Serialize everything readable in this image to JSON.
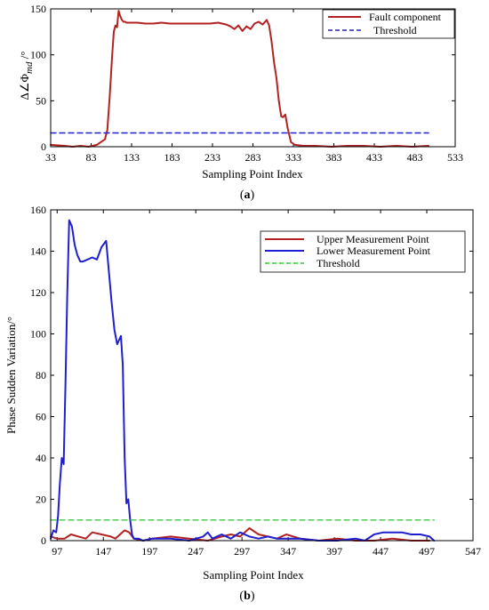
{
  "chart_data": [
    {
      "type": "line",
      "caption_open": "(",
      "caption_letter": "a",
      "caption_close": ")",
      "xlabel": "Sampling Point Index",
      "ylabel_main": "Δ∠Φ",
      "ylabel_sub": "md",
      "ylabel_unit": " /°",
      "xticks": [
        33,
        83,
        133,
        183,
        233,
        283,
        333,
        383,
        433,
        483,
        533
      ],
      "yticks": [
        0,
        50,
        100,
        150
      ],
      "xlim": [
        33,
        533
      ],
      "ylim": [
        0,
        150
      ],
      "legend_position": "top-right",
      "colors": {
        "fault": "#b22222",
        "threshold": "#1f1fd0"
      },
      "series": [
        {
          "name": "Fault component",
          "style": "solid",
          "x": [
            33,
            50,
            60,
            70,
            80,
            90,
            100,
            103,
            106,
            109,
            111,
            113,
            115,
            117,
            119,
            121,
            123,
            125,
            127,
            130,
            140,
            150,
            160,
            170,
            180,
            190,
            200,
            210,
            220,
            230,
            240,
            250,
            255,
            260,
            265,
            270,
            275,
            280,
            285,
            290,
            295,
            300,
            303,
            306,
            309,
            312,
            315,
            318,
            320,
            323,
            326,
            330,
            335,
            345,
            360,
            380,
            400,
            420,
            440,
            460,
            480,
            500
          ],
          "y": [
            2,
            1,
            0,
            1,
            0,
            2,
            8,
            18,
            55,
            100,
            125,
            132,
            130,
            148,
            142,
            138,
            136,
            136,
            135,
            135,
            135,
            134,
            134,
            135,
            134,
            134,
            134,
            134,
            134,
            134,
            135,
            133,
            131,
            128,
            132,
            126,
            131,
            128,
            134,
            136,
            133,
            138,
            132,
            115,
            92,
            75,
            50,
            33,
            32,
            35,
            20,
            5,
            2,
            1,
            1,
            0,
            1,
            1,
            0,
            1,
            0,
            1
          ]
        },
        {
          "name": "Threshold",
          "style": "dashed",
          "x": [
            33,
            500
          ],
          "y": [
            15,
            15
          ]
        }
      ]
    },
    {
      "type": "line",
      "caption_open": "(",
      "caption_letter": "b",
      "caption_close": ")",
      "xlabel": "Sampling Point Index",
      "ylabel": "Phase Sudden Variation/°",
      "xticks": [
        97,
        147,
        197,
        247,
        297,
        347,
        397,
        447,
        497,
        547
      ],
      "yticks": [
        0,
        20,
        40,
        60,
        80,
        100,
        120,
        140,
        160
      ],
      "xlim": [
        90,
        547
      ],
      "ylim": [
        0,
        160
      ],
      "legend_position": "top-right",
      "colors": {
        "upper": "#b22222",
        "lower": "#1f1fd0",
        "threshold": "#3cc83c"
      },
      "series": [
        {
          "name": "Upper Measurement Point",
          "style": "solid",
          "x": [
            90,
            97,
            105,
            112,
            120,
            128,
            135,
            145,
            155,
            160,
            165,
            170,
            175,
            180,
            190,
            200,
            220,
            240,
            260,
            275,
            285,
            295,
            305,
            315,
            325,
            335,
            345,
            360,
            380,
            400,
            420,
            440,
            460,
            480,
            500
          ],
          "y": [
            2,
            1,
            1,
            3,
            2,
            1,
            4,
            3,
            2,
            1,
            3,
            5,
            4,
            1,
            0,
            1,
            2,
            1,
            0,
            2,
            3,
            2,
            6,
            3,
            2,
            1,
            3,
            1,
            0,
            1,
            0,
            0,
            1,
            0,
            0
          ]
        },
        {
          "name": "Lower Measurement Point",
          "style": "solid",
          "x": [
            90,
            93,
            96,
            98,
            100,
            102,
            104,
            106,
            108,
            110,
            113,
            116,
            119,
            122,
            125,
            130,
            135,
            140,
            145,
            150,
            153,
            156,
            159,
            162,
            164,
            166,
            168,
            170,
            172,
            174,
            176,
            178,
            180,
            185,
            190,
            200,
            220,
            240,
            255,
            260,
            265,
            275,
            285,
            295,
            305,
            315,
            325,
            335,
            345,
            360,
            380,
            400,
            420,
            430,
            440,
            450,
            460,
            470,
            480,
            490,
            500,
            505
          ],
          "y": [
            1,
            5,
            4,
            12,
            28,
            40,
            37,
            75,
            120,
            155,
            152,
            143,
            138,
            135,
            135,
            136,
            137,
            136,
            142,
            145,
            130,
            115,
            102,
            95,
            97,
            99,
            85,
            40,
            18,
            20,
            10,
            3,
            1,
            1,
            0,
            1,
            1,
            0,
            2,
            4,
            1,
            3,
            1,
            4,
            2,
            1,
            2,
            1,
            1,
            1,
            0,
            0,
            1,
            0,
            3,
            4,
            4,
            4,
            3,
            3,
            2,
            0
          ]
        },
        {
          "name": "Threshold",
          "style": "dashed",
          "x": [
            90,
            505
          ],
          "y": [
            10,
            10
          ]
        }
      ]
    }
  ]
}
